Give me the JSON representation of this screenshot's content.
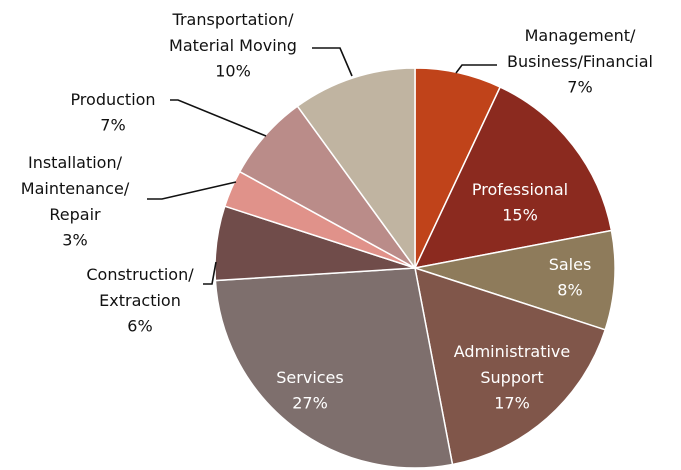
{
  "chart_data": {
    "type": "pie",
    "categories": [
      "Management/\nBusiness/Financial",
      "Professional",
      "Sales",
      "Administrative\nSupport",
      "Services",
      "Construction/\nExtraction",
      "Installation/\nMaintenance/\nRepair",
      "Production",
      "Transportation/\nMaterial Moving"
    ],
    "values": [
      7,
      15,
      8,
      17,
      27,
      6,
      3,
      7,
      10
    ],
    "value_labels": [
      "7%",
      "15%",
      "8%",
      "17%",
      "27%",
      "6%",
      "3%",
      "7%",
      "10%"
    ],
    "colors": [
      "#c0431a",
      "#8b2a1f",
      "#8e7b5b",
      "#80564a",
      "#7e6f6d",
      "#704c4a",
      "#e0928a",
      "#ba8c89",
      "#c0b4a1"
    ]
  }
}
